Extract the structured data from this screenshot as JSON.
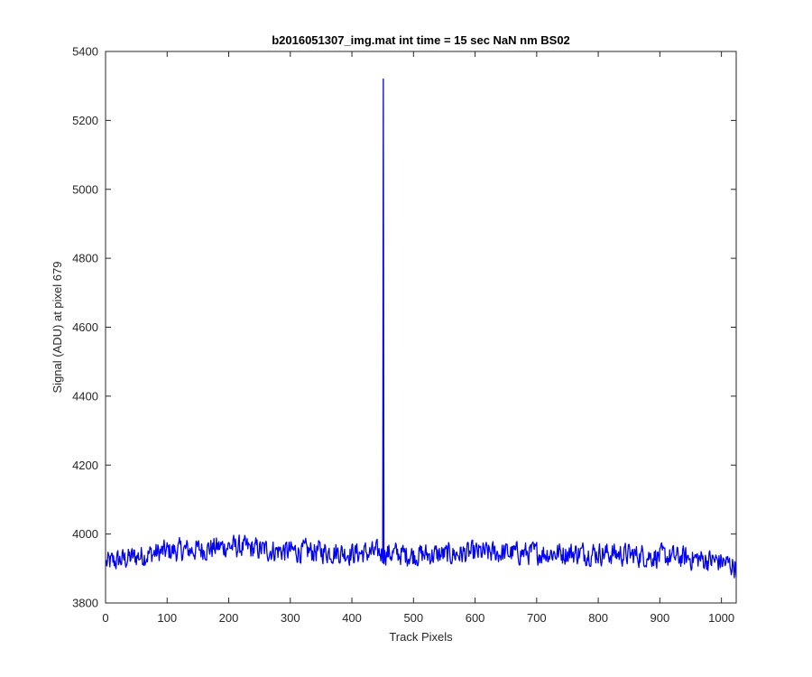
{
  "chart_data": {
    "type": "line",
    "title": "b2016051307_img.mat int time = 15 sec  NaN nm BS02",
    "xlabel": "Track Pixels",
    "ylabel": "Signal (ADU) at pixel 679",
    "xlim": [
      0,
      1024
    ],
    "ylim": [
      3800,
      5400
    ],
    "xticks": [
      0,
      100,
      200,
      300,
      400,
      500,
      600,
      700,
      800,
      900,
      1000
    ],
    "yticks": [
      3800,
      4000,
      4200,
      4400,
      4600,
      4800,
      5000,
      5200,
      5400
    ],
    "grid": false,
    "legend": "none",
    "line_color": "#0000ff",
    "series": [
      {
        "x": [
          1,
          450,
          451,
          452,
          1024
        ],
        "y": [
          3895,
          3960,
          5320,
          3960,
          3880
        ],
        "baseline": {
          "x": [
            0,
            50,
            100,
            150,
            200,
            250,
            300,
            350,
            400,
            450,
            500,
            550,
            600,
            650,
            700,
            750,
            800,
            850,
            900,
            950,
            1000,
            1024
          ],
          "y": [
            3915,
            3935,
            3950,
            3955,
            3965,
            3955,
            3950,
            3950,
            3945,
            3945,
            3940,
            3940,
            3945,
            3945,
            3945,
            3945,
            3945,
            3940,
            3935,
            3930,
            3920,
            3905
          ]
        },
        "noise_amplitude": 45,
        "peak": {
          "x": 451,
          "y": 5320
        }
      }
    ]
  }
}
